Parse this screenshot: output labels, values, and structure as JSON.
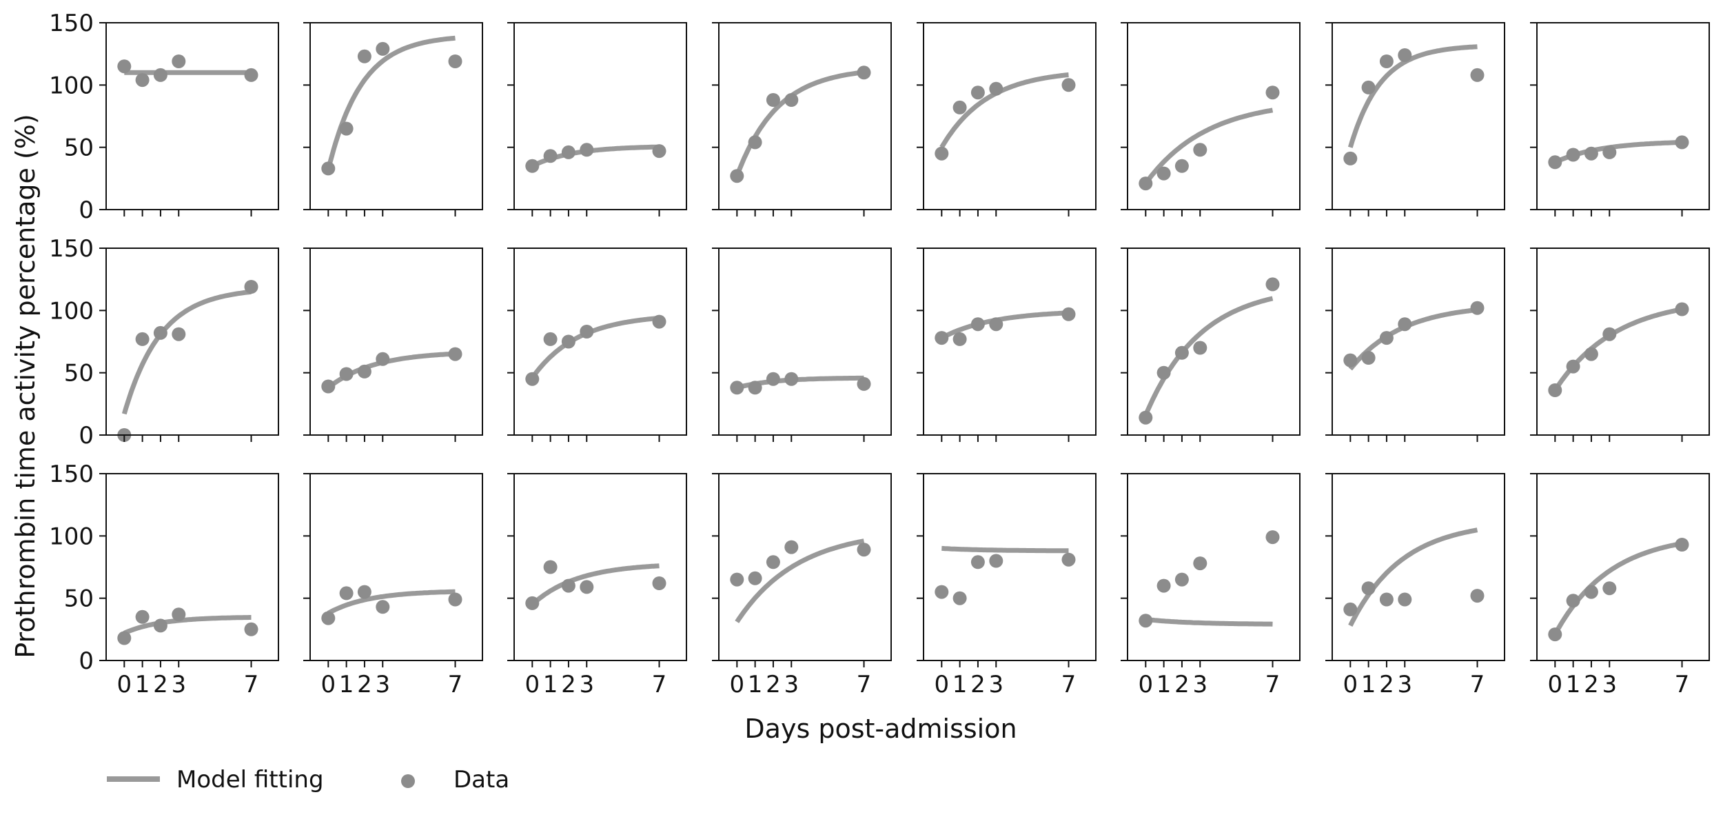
{
  "chart_data": {
    "type": "scatter",
    "layout": "small-multiples",
    "rows": 3,
    "cols": 8,
    "shared_axes": true,
    "xlabel": "Days post-admission",
    "ylabel": "Prothrombin time activity percentage (%)",
    "xlim": [
      -1,
      8.5
    ],
    "ylim": [
      0,
      150
    ],
    "xticks": [
      0,
      1,
      2,
      3,
      7
    ],
    "yticks": [
      0,
      50,
      100,
      150
    ],
    "grid": false,
    "legend": {
      "placement": "bottom-left",
      "entries": [
        {
          "label": "Model fitting",
          "marker": "line",
          "color": "#999999"
        },
        {
          "label": "Data",
          "marker": "circle",
          "color": "#8c8c8c"
        }
      ]
    },
    "x": [
      0,
      1,
      2,
      3,
      7
    ],
    "panels": [
      {
        "data": [
          115,
          104,
          108,
          119,
          108
        ],
        "fit": {
          "start": 110,
          "end": 110,
          "rate": 0.5
        }
      },
      {
        "data": [
          33,
          65,
          123,
          129,
          119
        ],
        "fit": {
          "start": 32,
          "end": 140,
          "rate": 0.55
        }
      },
      {
        "data": [
          35,
          43,
          46,
          48,
          47
        ],
        "fit": {
          "start": 35,
          "end": 51,
          "rate": 0.45
        }
      },
      {
        "data": [
          27,
          54,
          88,
          88,
          110
        ],
        "fit": {
          "start": 27,
          "end": 114,
          "rate": 0.45
        }
      },
      {
        "data": [
          45,
          82,
          94,
          97,
          100
        ],
        "fit": {
          "start": 50,
          "end": 112,
          "rate": 0.4
        }
      },
      {
        "data": [
          21,
          29,
          35,
          48,
          94
        ],
        "fit": {
          "start": 21,
          "end": 88,
          "rate": 0.3
        }
      },
      {
        "data": [
          41,
          98,
          119,
          124,
          108
        ],
        "fit": {
          "start": 50,
          "end": 132,
          "rate": 0.6
        }
      },
      {
        "data": [
          38,
          44,
          45,
          46,
          54
        ],
        "fit": {
          "start": 38,
          "end": 55,
          "rate": 0.4
        }
      },
      {
        "data": [
          0,
          77,
          82,
          81,
          119
        ],
        "fit": {
          "start": 17,
          "end": 118,
          "rate": 0.5
        }
      },
      {
        "data": [
          39,
          49,
          51,
          61,
          65
        ],
        "fit": {
          "start": 38,
          "end": 67,
          "rate": 0.4
        }
      },
      {
        "data": [
          45,
          77,
          75,
          83,
          91
        ],
        "fit": {
          "start": 46,
          "end": 97,
          "rate": 0.4
        }
      },
      {
        "data": [
          38,
          38,
          45,
          45,
          41
        ],
        "fit": {
          "start": 38,
          "end": 46,
          "rate": 0.5
        }
      },
      {
        "data": [
          78,
          77,
          89,
          89,
          97
        ],
        "fit": {
          "start": 78,
          "end": 100,
          "rate": 0.35
        }
      },
      {
        "data": [
          14,
          50,
          66,
          70,
          121
        ],
        "fit": {
          "start": 16,
          "end": 120,
          "rate": 0.33
        }
      },
      {
        "data": [
          60,
          62,
          78,
          89,
          102
        ],
        "fit": {
          "start": 53,
          "end": 105,
          "rate": 0.35
        }
      },
      {
        "data": [
          36,
          55,
          65,
          81,
          101
        ],
        "fit": {
          "start": 36,
          "end": 110,
          "rate": 0.3
        }
      },
      {
        "data": [
          18,
          35,
          28,
          37,
          25
        ],
        "fit": {
          "start": 22,
          "end": 35,
          "rate": 0.5
        }
      },
      {
        "data": [
          34,
          54,
          55,
          43,
          49
        ],
        "fit": {
          "start": 38,
          "end": 56,
          "rate": 0.45
        }
      },
      {
        "data": [
          46,
          75,
          60,
          59,
          62
        ],
        "fit": {
          "start": 45,
          "end": 78,
          "rate": 0.4
        }
      },
      {
        "data": [
          65,
          66,
          79,
          91,
          89
        ],
        "fit": {
          "start": 31,
          "end": 105,
          "rate": 0.3
        }
      },
      {
        "data": [
          55,
          50,
          79,
          80,
          81
        ],
        "fit": {
          "start": 90,
          "end": 88,
          "rate": 0.4
        }
      },
      {
        "data": [
          32,
          60,
          65,
          78,
          99
        ],
        "fit": {
          "start": 33,
          "end": 29,
          "rate": 0.4
        }
      },
      {
        "data": [
          41,
          58,
          49,
          49,
          52
        ],
        "fit": {
          "start": 28,
          "end": 112,
          "rate": 0.35
        }
      },
      {
        "data": [
          21,
          48,
          55,
          58,
          93
        ],
        "fit": {
          "start": 21,
          "end": 102,
          "rate": 0.33
        }
      }
    ]
  },
  "colors": {
    "fit_line": "#999999",
    "data_point": "#8c8c8c",
    "axis": "#111111"
  }
}
